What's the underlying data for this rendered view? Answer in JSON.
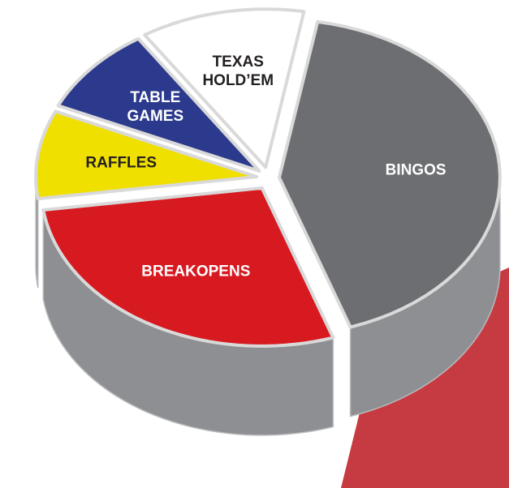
{
  "chart_data": {
    "type": "pie",
    "categories": [
      "BINGOS",
      "BREAKOPENS",
      "RAFFLES",
      "TABLE GAMES",
      "TEXAS HOLD’EM"
    ],
    "values": [
      42,
      28,
      9,
      9,
      12
    ],
    "colors": [
      "#6d6e71",
      "#d71920",
      "#f0e000",
      "#2b3a8c",
      "#ffffff"
    ]
  }
}
